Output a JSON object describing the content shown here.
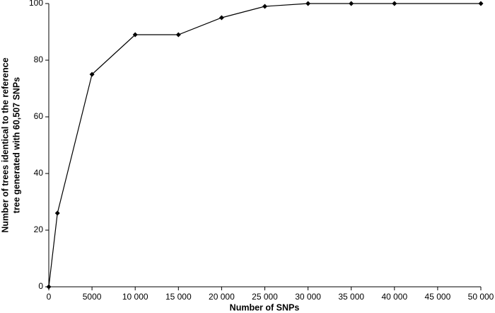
{
  "chart_data": {
    "type": "line",
    "xlabel": "Number of SNPs",
    "ylabel": [
      "Number of trees identical to the reference",
      "tree generated with 60,507 SNPs"
    ],
    "x": [
      0,
      1000,
      5000,
      10000,
      15000,
      20000,
      25000,
      30000,
      35000,
      40000,
      50000
    ],
    "values": [
      0,
      26,
      75,
      89,
      89,
      95,
      99,
      100,
      100,
      100,
      100
    ],
    "color": "#000000",
    "xlim": [
      0,
      50000
    ],
    "xticks": [
      0,
      5000,
      {
        "value": 10000,
        "label": "10 000"
      },
      {
        "value": 15000,
        "label": "15 000"
      },
      {
        "value": 20000,
        "label": "20 000"
      },
      {
        "value": 25000,
        "label": "25 000"
      },
      {
        "value": 30000,
        "label": "30 000"
      },
      {
        "value": 35000,
        "label": "35 000"
      },
      {
        "value": 40000,
        "label": "40 000"
      },
      {
        "value": 45000,
        "label": "45 000"
      },
      {
        "value": 50000,
        "label": "50 000"
      }
    ],
    "ylim": [
      0,
      100
    ],
    "yticks": [
      0,
      20,
      40,
      60,
      80,
      100
    ],
    "grid": false
  }
}
